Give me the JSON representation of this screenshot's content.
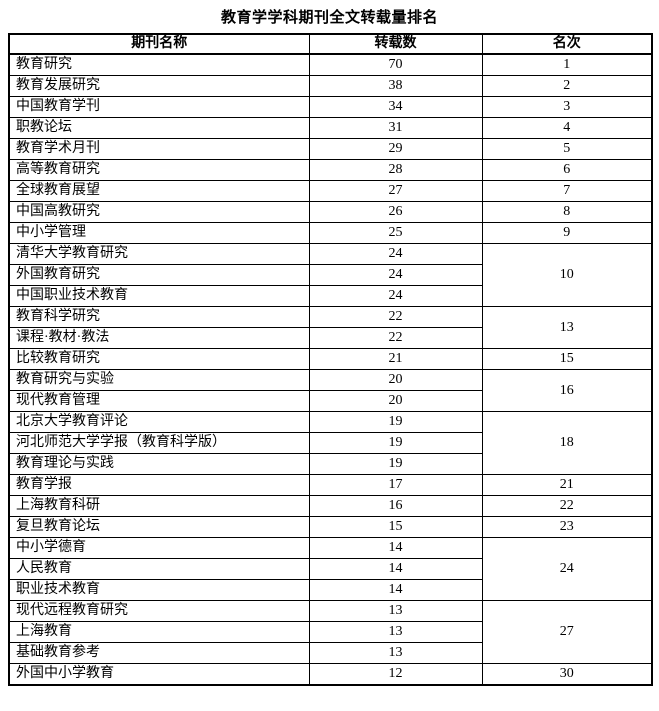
{
  "title": "教育学学科期刊全文转载量排名",
  "chart_data": {
    "type": "table",
    "title": "教育学学科期刊全文转载量排名",
    "columns": [
      "期刊名称",
      "转载数",
      "名次"
    ],
    "rows": [
      {
        "journal": "教育研究",
        "count": 70,
        "rank": 1,
        "rank_rowspan": 1
      },
      {
        "journal": "教育发展研究",
        "count": 38,
        "rank": 2,
        "rank_rowspan": 1
      },
      {
        "journal": "中国教育学刊",
        "count": 34,
        "rank": 3,
        "rank_rowspan": 1
      },
      {
        "journal": "职教论坛",
        "count": 31,
        "rank": 4,
        "rank_rowspan": 1
      },
      {
        "journal": "教育学术月刊",
        "count": 29,
        "rank": 5,
        "rank_rowspan": 1
      },
      {
        "journal": "高等教育研究",
        "count": 28,
        "rank": 6,
        "rank_rowspan": 1
      },
      {
        "journal": "全球教育展望",
        "count": 27,
        "rank": 7,
        "rank_rowspan": 1
      },
      {
        "journal": "中国高教研究",
        "count": 26,
        "rank": 8,
        "rank_rowspan": 1
      },
      {
        "journal": "中小学管理",
        "count": 25,
        "rank": 9,
        "rank_rowspan": 1
      },
      {
        "journal": "清华大学教育研究",
        "count": 24,
        "rank": 10,
        "rank_rowspan": 3
      },
      {
        "journal": "外国教育研究",
        "count": 24,
        "rank": null,
        "rank_rowspan": 0
      },
      {
        "journal": "中国职业技术教育",
        "count": 24,
        "rank": null,
        "rank_rowspan": 0
      },
      {
        "journal": "教育科学研究",
        "count": 22,
        "rank": 13,
        "rank_rowspan": 2
      },
      {
        "journal": "课程·教材·教法",
        "count": 22,
        "rank": null,
        "rank_rowspan": 0
      },
      {
        "journal": "比较教育研究",
        "count": 21,
        "rank": 15,
        "rank_rowspan": 1
      },
      {
        "journal": "教育研究与实验",
        "count": 20,
        "rank": 16,
        "rank_rowspan": 2
      },
      {
        "journal": "现代教育管理",
        "count": 20,
        "rank": null,
        "rank_rowspan": 0
      },
      {
        "journal": "北京大学教育评论",
        "count": 19,
        "rank": 18,
        "rank_rowspan": 3
      },
      {
        "journal": "河北师范大学学报（教育科学版）",
        "count": 19,
        "rank": null,
        "rank_rowspan": 0
      },
      {
        "journal": "教育理论与实践",
        "count": 19,
        "rank": null,
        "rank_rowspan": 0
      },
      {
        "journal": "教育学报",
        "count": 17,
        "rank": 21,
        "rank_rowspan": 1
      },
      {
        "journal": "上海教育科研",
        "count": 16,
        "rank": 22,
        "rank_rowspan": 1
      },
      {
        "journal": "复旦教育论坛",
        "count": 15,
        "rank": 23,
        "rank_rowspan": 1
      },
      {
        "journal": "中小学德育",
        "count": 14,
        "rank": 24,
        "rank_rowspan": 3
      },
      {
        "journal": "人民教育",
        "count": 14,
        "rank": null,
        "rank_rowspan": 0
      },
      {
        "journal": "职业技术教育",
        "count": 14,
        "rank": null,
        "rank_rowspan": 0
      },
      {
        "journal": "现代远程教育研究",
        "count": 13,
        "rank": 27,
        "rank_rowspan": 3
      },
      {
        "journal": "上海教育",
        "count": 13,
        "rank": null,
        "rank_rowspan": 0
      },
      {
        "journal": "基础教育参考",
        "count": 13,
        "rank": null,
        "rank_rowspan": 0
      },
      {
        "journal": "外国中小学教育",
        "count": 12,
        "rank": 30,
        "rank_rowspan": 1
      }
    ]
  }
}
